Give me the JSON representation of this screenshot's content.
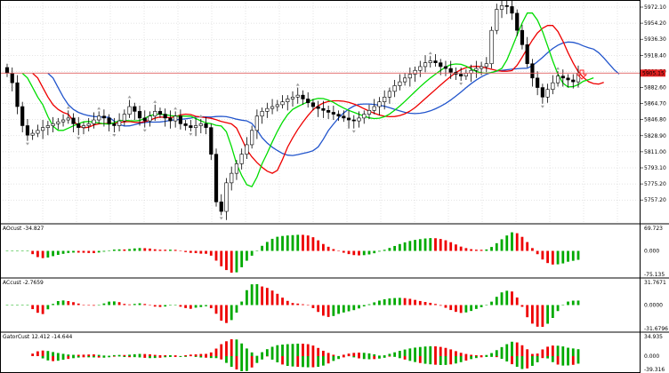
{
  "colors": {
    "bg": "#ffffff",
    "grid": "#c8c8c8",
    "border": "#000000",
    "candle_up": "#ffffff",
    "candle_down": "#000000",
    "price_line": "#e06060",
    "price_tag_bg": "#e02020",
    "ma_fast": "#00dd00",
    "ma_mid": "#ee0000",
    "ma_slow": "#2255cc",
    "hist_up": "#00aa00",
    "hist_down": "#ee0000",
    "fractal": "#a0a0a0",
    "arrow": "#ff2222"
  },
  "price_axis": {
    "labels": [
      "5972.10",
      "5954.20",
      "5936.30",
      "5918.40",
      "5900.50",
      "5882.60",
      "5864.70",
      "5846.80",
      "5828.90",
      "5811.00",
      "5793.10",
      "5775.20",
      "5757.20"
    ],
    "current_price": "5905.15",
    "range": [
      5747,
      5980
    ]
  },
  "indicator_panels": [
    {
      "name": "AOcust",
      "header": "AOcust -34.827",
      "axis_labels": [
        "69.723",
        "0.000",
        "-75.135"
      ]
    },
    {
      "name": "ACcust",
      "header": "ACcust -2.7659",
      "axis_labels": [
        "31.7671",
        "0.0000",
        "-31.6796"
      ]
    },
    {
      "name": "GatorCust",
      "header": "GatorCust 12.412 -14.644",
      "axis_labels": [
        "34.935",
        "0.000",
        "-39.316"
      ]
    }
  ],
  "chart_data": {
    "type": "candlestick",
    "closes": [
      5905,
      5895,
      5870,
      5850,
      5840,
      5842,
      5845,
      5848,
      5850,
      5852,
      5854,
      5856,
      5858,
      5852,
      5848,
      5850,
      5852,
      5856,
      5860,
      5858,
      5852,
      5850,
      5855,
      5862,
      5870,
      5865,
      5858,
      5855,
      5860,
      5865,
      5862,
      5858,
      5855,
      5860,
      5852,
      5850,
      5848,
      5850,
      5852,
      5848,
      5820,
      5770,
      5760,
      5790,
      5800,
      5810,
      5820,
      5830,
      5845,
      5860,
      5865,
      5868,
      5870,
      5872,
      5875,
      5878,
      5880,
      5882,
      5878,
      5874,
      5870,
      5868,
      5866,
      5864,
      5862,
      5860,
      5858,
      5856,
      5855,
      5858,
      5862,
      5866,
      5870,
      5875,
      5880,
      5886,
      5892,
      5896,
      5900,
      5904,
      5908,
      5912,
      5916,
      5918,
      5916,
      5912,
      5910,
      5906,
      5904,
      5902,
      5905,
      5908,
      5910,
      5912,
      5915,
      5950,
      5972,
      5976,
      5975,
      5968,
      5950,
      5935,
      5915,
      5900,
      5890,
      5880,
      5888,
      5895,
      5902,
      5900,
      5898,
      5896,
      5905
    ],
    "y_range": [
      5747,
      5980
    ]
  }
}
